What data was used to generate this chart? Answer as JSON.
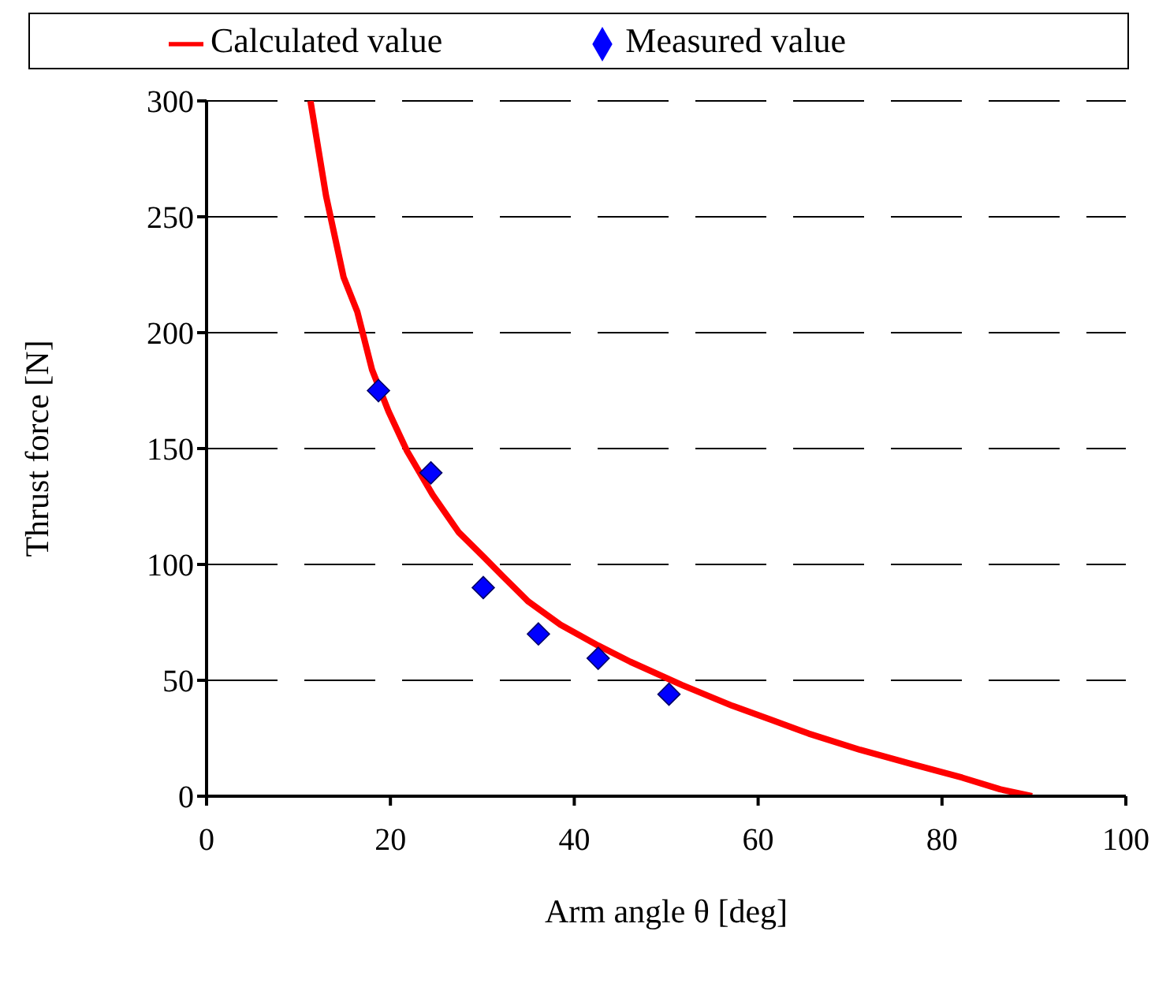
{
  "chart_data": {
    "type": "line",
    "xlabel": "Arm angle θ [deg]",
    "ylabel": "Thrust force [N]",
    "xlim": [
      0,
      100
    ],
    "xticks": [
      0,
      20,
      40,
      60,
      80,
      100
    ],
    "ylim": [
      0,
      300
    ],
    "yticks": [
      0,
      50,
      100,
      150,
      200,
      250,
      300
    ],
    "grid": "y",
    "legend": "top",
    "series": [
      {
        "name": "Calculated value",
        "color": "#ff0000",
        "marker": "none",
        "line_style": "solid",
        "x": [
          11.3,
          13.0,
          14.9,
          16.4,
          18.0,
          19.8,
          21.8,
          24.6,
          27.4,
          30.2,
          32.2,
          35.0,
          38.5,
          42.6,
          46.1,
          51.7,
          57.2,
          61.4,
          65.5,
          71.1,
          76.6,
          82.2,
          86.3,
          89.8
        ],
        "values": [
          300,
          259,
          224,
          209,
          184,
          166,
          149,
          130,
          114,
          103,
          95,
          84,
          74,
          65,
          58,
          48,
          39,
          33,
          27,
          20,
          14,
          8,
          3,
          0
        ]
      },
      {
        "name": "Measured value",
        "type": "scatter",
        "color": "#0000ff",
        "marker": "diamond",
        "x": [
          18.7,
          24.4,
          30.1,
          36.1,
          42.6,
          50.3
        ],
        "values": [
          175,
          139.5,
          90,
          70,
          59.5,
          44
        ]
      }
    ]
  }
}
